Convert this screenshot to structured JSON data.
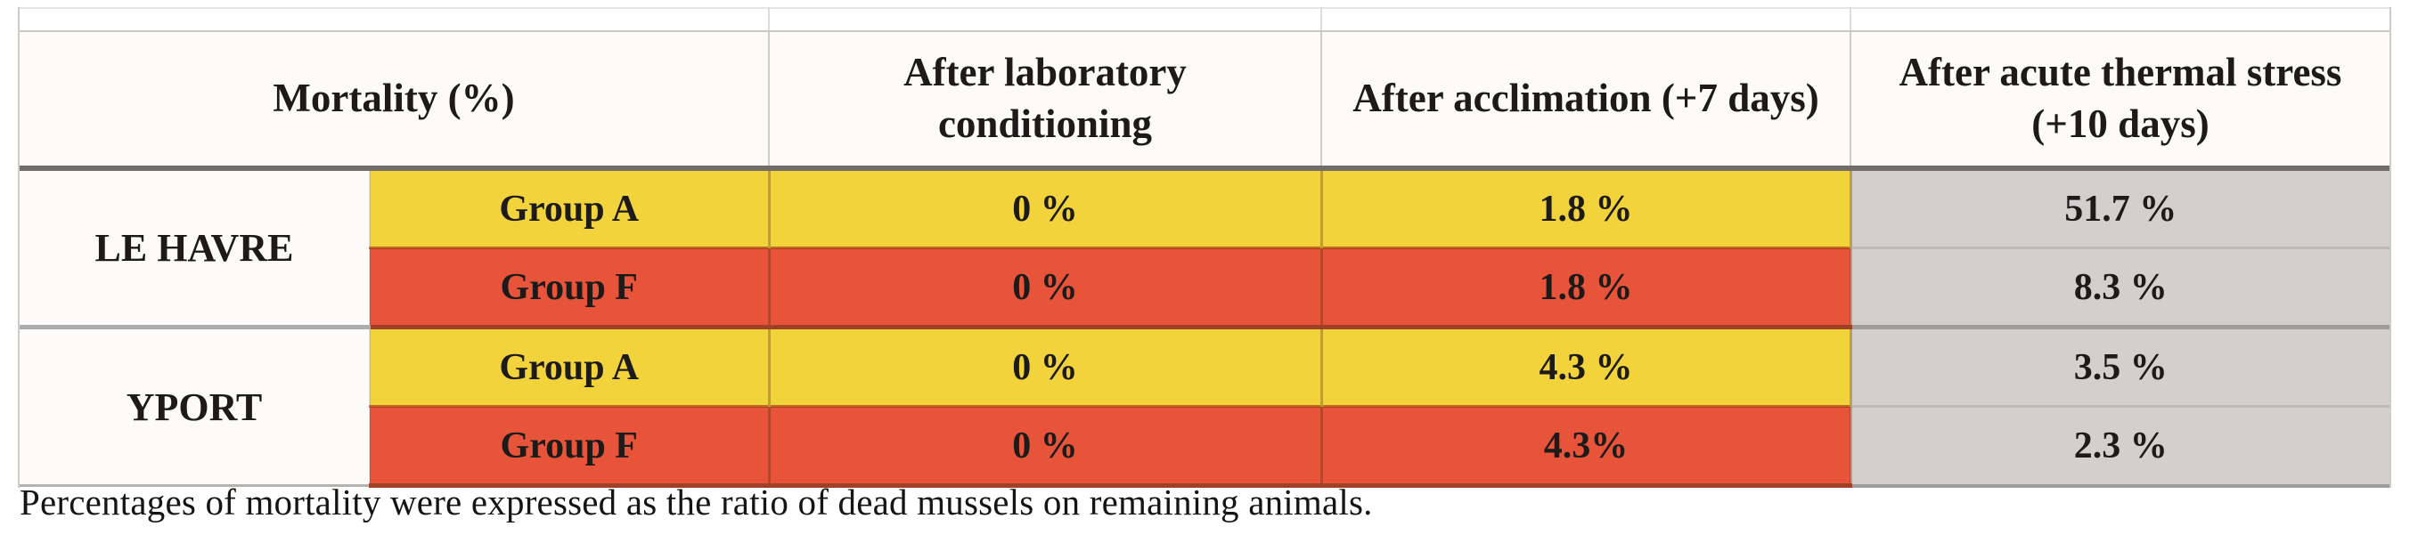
{
  "theme": {
    "yellow": "#F3D33C",
    "red": "#E85439",
    "gray-cell": "#D2D0CF",
    "white-cell": "#FCFBFA",
    "text": "#1D1B1A",
    "header-divider": "#6F6C6A",
    "location-divider": "#ACACAC",
    "colored-divider": "#9E4126",
    "gray-divider": "#9E9B9B",
    "light-divider": "#BDBABA",
    "outer-border": "#CFCCCA"
  },
  "table": {
    "corner_label": "Mortality (%)",
    "column_headers": [
      "After laboratory conditioning",
      "After acclimation (+7 days)",
      "After acute thermal stress (+10 days)"
    ],
    "rows": [
      {
        "location": "LE HAVRE",
        "group": "Group A",
        "color": "yellow",
        "after_lab": "0 %",
        "after_acclimation": "1.8 %",
        "after_stress": "51.7 %"
      },
      {
        "location": "LE HAVRE",
        "group": "Group F",
        "color": "red",
        "after_lab": "0 %",
        "after_acclimation": "1.8 %",
        "after_stress": "8.3 %"
      },
      {
        "location": "YPORT",
        "group": "Group A",
        "color": "yellow",
        "after_lab": "0 %",
        "after_acclimation": "4.3 %",
        "after_stress": "3.5 %"
      },
      {
        "location": "YPORT",
        "group": "Group F",
        "color": "red",
        "after_lab": "0 %",
        "after_acclimation": "4.3%",
        "after_stress": "2.3 %"
      }
    ]
  },
  "caption": "Percentages of mortality were expressed as the ratio of dead mussels on remaining animals."
}
